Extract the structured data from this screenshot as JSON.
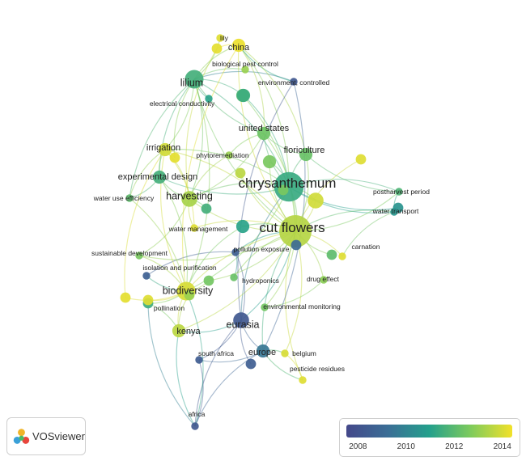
{
  "app": {
    "brand_label": "VOSviewer",
    "brand_icon": "vosviewer-logo-icon"
  },
  "color_scale": {
    "stops": [
      "#44488a",
      "#3b6e96",
      "#24a08c",
      "#7ecb5c",
      "#f2e12a"
    ],
    "ticks": [
      "2008",
      "2010",
      "2012",
      "2014"
    ],
    "min": 2007.5,
    "max": 2014.3
  },
  "nodes": [
    {
      "id": "china",
      "label": "china",
      "year": 2014.2,
      "weight": 3
    },
    {
      "id": "lily",
      "label": "lily",
      "year": 2014,
      "weight": 1
    },
    {
      "id": "bio_pest",
      "label": "biological pest control",
      "year": 2013,
      "weight": 1
    },
    {
      "id": "lilium",
      "label": "lilium",
      "year": 2011.5,
      "weight": 5
    },
    {
      "id": "env_ctrl",
      "label": "environment, controlled",
      "year": 2008.2,
      "weight": 1
    },
    {
      "id": "elec_cond",
      "label": "electrical conductivity",
      "year": 2011,
      "weight": 1
    },
    {
      "id": "us",
      "label": "united states",
      "year": 2012.3,
      "weight": 3
    },
    {
      "id": "floriculture",
      "label": "floriculture",
      "year": 2012.2,
      "weight": 3
    },
    {
      "id": "irrigation",
      "label": "irrigation",
      "year": 2013.8,
      "weight": 3
    },
    {
      "id": "phytoremediation",
      "label": "phytoremediation",
      "year": 2013,
      "weight": 1
    },
    {
      "id": "exp_design",
      "label": "experimental design",
      "year": 2011.5,
      "weight": 3
    },
    {
      "id": "chrysanthemum",
      "label": "chrysanthemum",
      "year": 2011.3,
      "weight": 9
    },
    {
      "id": "harvesting",
      "label": "harvesting",
      "year": 2013.2,
      "weight": 4
    },
    {
      "id": "water_use",
      "label": "water use efficiency",
      "year": 2012,
      "weight": 1
    },
    {
      "id": "postharvest",
      "label": "postharvest period",
      "year": 2011.7,
      "weight": 1
    },
    {
      "id": "water_transport",
      "label": "water transport",
      "year": 2010.6,
      "weight": 1
    },
    {
      "id": "cut_flowers",
      "label": "cut flowers",
      "year": 2013.4,
      "weight": 10
    },
    {
      "id": "water_mgmt",
      "label": "water management",
      "year": 2014,
      "weight": 1
    },
    {
      "id": "carnation",
      "label": "carnation",
      "year": 2014,
      "weight": 1
    },
    {
      "id": "pollution",
      "label": "pollution exposure",
      "year": 2008.5,
      "weight": 1
    },
    {
      "id": "sustainable",
      "label": "sustainable development",
      "year": 2012.5,
      "weight": 1
    },
    {
      "id": "isolation",
      "label": "isolation and purification",
      "year": 2008.6,
      "weight": 1
    },
    {
      "id": "hydroponics",
      "label": "hydroponics",
      "year": 2012.2,
      "weight": 1
    },
    {
      "id": "drug_effect",
      "label": "drug effect",
      "year": 2012.8,
      "weight": 1
    },
    {
      "id": "biodiversity",
      "label": "biodiversity",
      "year": 2013.9,
      "weight": 5
    },
    {
      "id": "pollination",
      "label": "pollination",
      "year": 2011.4,
      "weight": 2
    },
    {
      "id": "env_mon",
      "label": "environmental monitoring",
      "year": 2012.4,
      "weight": 1
    },
    {
      "id": "eurasia",
      "label": "eurasia",
      "year": 2008.2,
      "weight": 4
    },
    {
      "id": "kenya",
      "label": "kenya",
      "year": 2013.5,
      "weight": 3
    },
    {
      "id": "europe",
      "label": "europe",
      "year": 2009.5,
      "weight": 3
    },
    {
      "id": "south_africa",
      "label": "south africa",
      "year": 2008.4,
      "weight": 1
    },
    {
      "id": "belgium",
      "label": "belgium",
      "year": 2013.9,
      "weight": 1
    },
    {
      "id": "pesticide",
      "label": "pesticide residues",
      "year": 2014,
      "weight": 1
    },
    {
      "id": "africa",
      "label": "africa",
      "year": 2008.2,
      "weight": 1
    },
    {
      "id": "u1",
      "label": "",
      "year": 2012.5,
      "weight": 3
    },
    {
      "id": "u2",
      "label": "",
      "year": 2011.8,
      "weight": 3
    },
    {
      "id": "u3",
      "label": "",
      "year": 2013.8,
      "weight": 4
    },
    {
      "id": "u4",
      "label": "",
      "year": 2011.4,
      "weight": 3
    },
    {
      "id": "u5",
      "label": "",
      "year": 2014.1,
      "weight": 2
    },
    {
      "id": "u6",
      "label": "",
      "year": 2014.1,
      "weight": 2
    },
    {
      "id": "u7",
      "label": "",
      "year": 2014.1,
      "weight": 2
    },
    {
      "id": "u8",
      "label": "",
      "year": 2012.4,
      "weight": 2
    },
    {
      "id": "u9",
      "label": "",
      "year": 2013,
      "weight": 2
    },
    {
      "id": "u10",
      "label": "",
      "year": 2012,
      "weight": 2
    },
    {
      "id": "u11",
      "label": "",
      "year": 2011.5,
      "weight": 2
    },
    {
      "id": "u12",
      "label": "",
      "year": 2011,
      "weight": 3
    },
    {
      "id": "u13",
      "label": "",
      "year": 2010.5,
      "weight": 2
    },
    {
      "id": "u14",
      "label": "",
      "year": 2014,
      "weight": 2
    },
    {
      "id": "u15",
      "label": "",
      "year": 2012.5,
      "weight": 2
    },
    {
      "id": "u16",
      "label": "",
      "year": 2013.5,
      "weight": 2
    },
    {
      "id": "u17",
      "label": "",
      "year": 2009,
      "weight": 2
    },
    {
      "id": "u18",
      "label": "",
      "year": 2014,
      "weight": 2
    },
    {
      "id": "u19",
      "label": "",
      "year": 2008.5,
      "weight": 2
    }
  ],
  "links": [
    [
      "chrysanthemum",
      "cut_flowers"
    ],
    [
      "chrysanthemum",
      "lilium"
    ],
    [
      "chrysanthemum",
      "floriculture"
    ],
    [
      "chrysanthemum",
      "harvesting"
    ],
    [
      "chrysanthemum",
      "postharvest"
    ],
    [
      "chrysanthemum",
      "water_transport"
    ],
    [
      "chrysanthemum",
      "us"
    ],
    [
      "chrysanthemum",
      "irrigation"
    ],
    [
      "chrysanthemum",
      "exp_design"
    ],
    [
      "chrysanthemum",
      "china"
    ],
    [
      "chrysanthemum",
      "biodiversity"
    ],
    [
      "chrysanthemum",
      "eurasia"
    ],
    [
      "cut_flowers",
      "carnation"
    ],
    [
      "cut_flowers",
      "postharvest"
    ],
    [
      "cut_flowers",
      "water_transport"
    ],
    [
      "cut_flowers",
      "biodiversity"
    ],
    [
      "cut_flowers",
      "kenya"
    ],
    [
      "cut_flowers",
      "europe"
    ],
    [
      "cut_flowers",
      "eurasia"
    ],
    [
      "cut_flowers",
      "pollution"
    ],
    [
      "cut_flowers",
      "drug_effect"
    ],
    [
      "cut_flowers",
      "hydroponics"
    ],
    [
      "cut_flowers",
      "belgium"
    ],
    [
      "cut_flowers",
      "pesticide"
    ],
    [
      "cut_flowers",
      "harvesting"
    ],
    [
      "cut_flowers",
      "irrigation"
    ],
    [
      "cut_flowers",
      "lilium"
    ],
    [
      "cut_flowers",
      "floriculture"
    ],
    [
      "cut_flowers",
      "env_mon"
    ],
    [
      "cut_flowers",
      "water_mgmt"
    ],
    [
      "cut_flowers",
      "china"
    ],
    [
      "cut_flowers",
      "us"
    ],
    [
      "lilium",
      "china"
    ],
    [
      "lilium",
      "lily"
    ],
    [
      "lilium",
      "bio_pest"
    ],
    [
      "lilium",
      "elec_cond"
    ],
    [
      "lilium",
      "irrigation"
    ],
    [
      "lilium",
      "exp_design"
    ],
    [
      "lilium",
      "env_ctrl"
    ],
    [
      "lilium",
      "us"
    ],
    [
      "lilium",
      "harvesting"
    ],
    [
      "lilium",
      "water_use"
    ],
    [
      "china",
      "us"
    ],
    [
      "china",
      "env_ctrl"
    ],
    [
      "china",
      "floriculture"
    ],
    [
      "us",
      "floriculture"
    ],
    [
      "us",
      "harvesting"
    ],
    [
      "irrigation",
      "exp_design"
    ],
    [
      "irrigation",
      "harvesting"
    ],
    [
      "irrigation",
      "water_use"
    ],
    [
      "irrigation",
      "water_mgmt"
    ],
    [
      "exp_design",
      "harvesting"
    ],
    [
      "exp_design",
      "water_use"
    ],
    [
      "harvesting",
      "water_mgmt"
    ],
    [
      "harvesting",
      "sustainable"
    ],
    [
      "biodiversity",
      "kenya"
    ],
    [
      "biodiversity",
      "pollination"
    ],
    [
      "biodiversity",
      "sustainable"
    ],
    [
      "biodiversity",
      "isolation"
    ],
    [
      "eurasia",
      "europe"
    ],
    [
      "eurasia",
      "south_africa"
    ],
    [
      "eurasia",
      "africa"
    ],
    [
      "eurasia",
      "kenya"
    ],
    [
      "eurasia",
      "pollution"
    ],
    [
      "europe",
      "belgium"
    ],
    [
      "europe",
      "pesticide"
    ],
    [
      "europe",
      "south_africa"
    ],
    [
      "europe",
      "africa"
    ],
    [
      "south_africa",
      "africa"
    ],
    [
      "kenya",
      "africa"
    ],
    [
      "biodiversity",
      "africa"
    ],
    [
      "pollination",
      "africa"
    ],
    [
      "isolation",
      "pollution"
    ],
    [
      "hydroponics",
      "pollution"
    ],
    [
      "drug_effect",
      "env_mon"
    ],
    [
      "env_ctrl",
      "eurasia"
    ],
    [
      "env_ctrl",
      "europe"
    ],
    [
      "phytoremediation",
      "harvesting"
    ],
    [
      "phytoremediation",
      "us"
    ],
    [
      "floriculture",
      "postharvest"
    ],
    [
      "u1",
      "chrysanthemum"
    ],
    [
      "u1",
      "cut_flowers"
    ],
    [
      "u2",
      "cut_flowers"
    ],
    [
      "u3",
      "chrysanthemum"
    ],
    [
      "u3",
      "cut_flowers"
    ],
    [
      "u4",
      "lilium"
    ],
    [
      "u4",
      "chrysanthemum"
    ],
    [
      "u5",
      "biodiversity"
    ],
    [
      "u5",
      "irrigation"
    ],
    [
      "u6",
      "irrigation"
    ],
    [
      "u6",
      "lilium"
    ],
    [
      "u7",
      "harvesting"
    ],
    [
      "u7",
      "china"
    ],
    [
      "u8",
      "cut_flowers"
    ],
    [
      "u8",
      "biodiversity"
    ],
    [
      "u9",
      "biodiversity"
    ],
    [
      "u10",
      "cut_flowers"
    ],
    [
      "u11",
      "harvesting"
    ],
    [
      "u12",
      "cut_flowers"
    ],
    [
      "u12",
      "biodiversity"
    ],
    [
      "u13",
      "chrysanthemum"
    ],
    [
      "u14",
      "cut_flowers"
    ],
    [
      "u15",
      "chrysanthemum"
    ],
    [
      "u16",
      "cut_flowers"
    ],
    [
      "u17",
      "cut_flowers"
    ],
    [
      "u18",
      "biodiversity"
    ],
    [
      "u19",
      "eurasia"
    ],
    [
      "postharvest",
      "water_transport"
    ],
    [
      "carnation",
      "water_transport"
    ],
    [
      "pesticide",
      "belgium"
    ],
    [
      "pollination",
      "kenya"
    ],
    [
      "u9",
      "kenya"
    ],
    [
      "exp_design",
      "biodiversity"
    ],
    [
      "irrigation",
      "biodiversity"
    ],
    [
      "lilium",
      "biodiversity"
    ],
    [
      "china",
      "biodiversity"
    ],
    [
      "water_use",
      "biodiversity"
    ],
    [
      "sustainable",
      "cut_flowers"
    ]
  ]
}
